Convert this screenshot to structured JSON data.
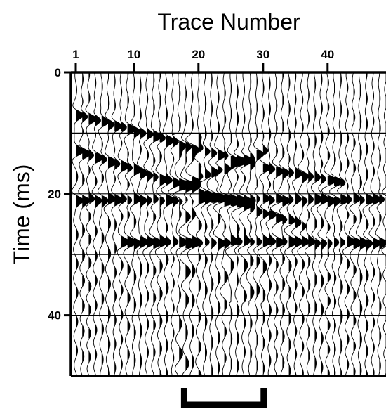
{
  "chart_data": {
    "type": "wiggle-trace seismogram",
    "title": "Trace Number",
    "xlabel": "",
    "ylabel": "Time (ms)",
    "x_ticks": [
      1,
      10,
      20,
      30,
      40
    ],
    "y_ticks": [
      0,
      20,
      40
    ],
    "x_range": [
      1,
      49
    ],
    "y_range": [
      0,
      50
    ],
    "y_reversed": true,
    "grid_horizontal_ms": [
      10,
      20,
      30,
      40
    ],
    "x_axis_position": "top",
    "trace_count": 49,
    "fill": "positive lobes filled black",
    "events": [
      {
        "kind": "reflection",
        "t0_ms": 7,
        "slope_ms_per_trace": 0.3,
        "from_trace": 1,
        "to_trace": 28
      },
      {
        "kind": "reflection",
        "t0_ms": 13,
        "slope_ms_per_trace": 0.35,
        "from_trace": 1,
        "to_trace": 36
      },
      {
        "kind": "reflection",
        "t0_ms": 21,
        "slope_ms_per_trace": 0.0,
        "from_trace": 1,
        "to_trace": 49
      },
      {
        "kind": "reflection",
        "t0_ms": 28,
        "slope_ms_per_trace": 0.0,
        "from_trace": 8,
        "to_trace": 49
      },
      {
        "kind": "dipping",
        "t0_ms": 26,
        "slope_ms_per_trace": -0.45,
        "from_trace": 17,
        "to_trace": 30
      },
      {
        "kind": "dipping",
        "t0_ms": 10,
        "slope_ms_per_trace": 0.2,
        "from_trace": 30,
        "to_trace": 42
      }
    ],
    "highlight_bracket_traces": [
      18,
      30
    ]
  }
}
